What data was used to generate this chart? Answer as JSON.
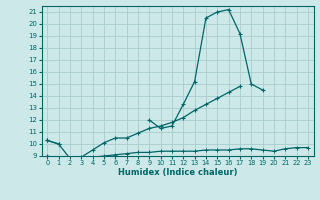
{
  "xlabel": "Humidex (Indice chaleur)",
  "x_values": [
    0,
    1,
    2,
    3,
    4,
    5,
    6,
    7,
    8,
    9,
    10,
    11,
    12,
    13,
    14,
    15,
    16,
    17,
    18,
    19,
    20,
    21,
    22,
    23
  ],
  "line1": [
    10.3,
    10.0,
    null,
    null,
    null,
    null,
    null,
    null,
    null,
    12.0,
    11.3,
    11.5,
    13.3,
    15.2,
    20.5,
    21.0,
    21.2,
    19.2,
    15.0,
    14.5,
    null,
    null,
    null,
    null
  ],
  "line2": [
    10.3,
    10.0,
    8.8,
    8.9,
    9.5,
    10.1,
    10.5,
    10.5,
    10.9,
    11.3,
    11.5,
    11.8,
    12.2,
    12.8,
    13.3,
    13.8,
    14.3,
    14.8,
    null,
    null,
    null,
    null,
    null,
    null
  ],
  "line3": [
    9.0,
    8.8,
    8.7,
    8.8,
    8.9,
    9.0,
    9.1,
    9.2,
    9.3,
    9.3,
    9.4,
    9.4,
    9.4,
    9.4,
    9.5,
    9.5,
    9.5,
    9.6,
    9.6,
    9.5,
    9.4,
    9.6,
    9.7,
    9.7
  ],
  "bg_color": "#cce8e8",
  "line_color": "#006666",
  "grid_color": "#aacccc",
  "ylim": [
    9,
    21.5
  ],
  "xlim": [
    -0.5,
    23.5
  ],
  "yticks": [
    9,
    10,
    11,
    12,
    13,
    14,
    15,
    16,
    17,
    18,
    19,
    20,
    21
  ],
  "xticks": [
    0,
    1,
    2,
    3,
    4,
    5,
    6,
    7,
    8,
    9,
    10,
    11,
    12,
    13,
    14,
    15,
    16,
    17,
    18,
    19,
    20,
    21,
    22,
    23
  ]
}
